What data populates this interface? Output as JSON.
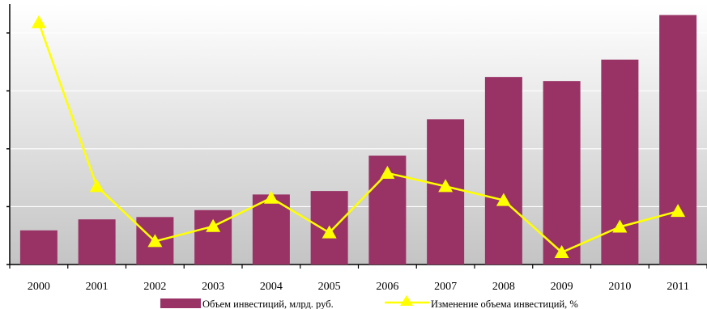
{
  "chart_data": {
    "type": "bar",
    "categories": [
      "2000",
      "2001",
      "2002",
      "2003",
      "2004",
      "2005",
      "2006",
      "2007",
      "2008",
      "2009",
      "2010",
      "2011"
    ],
    "series": [
      {
        "name": "Объем инвестиций, млрд. руб.",
        "type": "bar",
        "color": "#993366",
        "values": [
          0.59,
          0.78,
          0.82,
          0.94,
          1.21,
          1.27,
          1.88,
          2.51,
          3.24,
          3.17,
          3.54,
          4.31
        ]
      },
      {
        "name": "Изменение объема инвестиций, %",
        "type": "line",
        "color": "#ffff00",
        "marker": "triangle",
        "values": [
          4.18,
          1.35,
          0.4,
          0.66,
          1.15,
          0.55,
          1.58,
          1.35,
          1.11,
          0.21,
          0.65,
          0.92
        ]
      }
    ],
    "ylim": [
      0,
      4.5
    ],
    "yticks": [
      0,
      1,
      2,
      3,
      4
    ],
    "grid": true,
    "legend_position": "bottom"
  }
}
